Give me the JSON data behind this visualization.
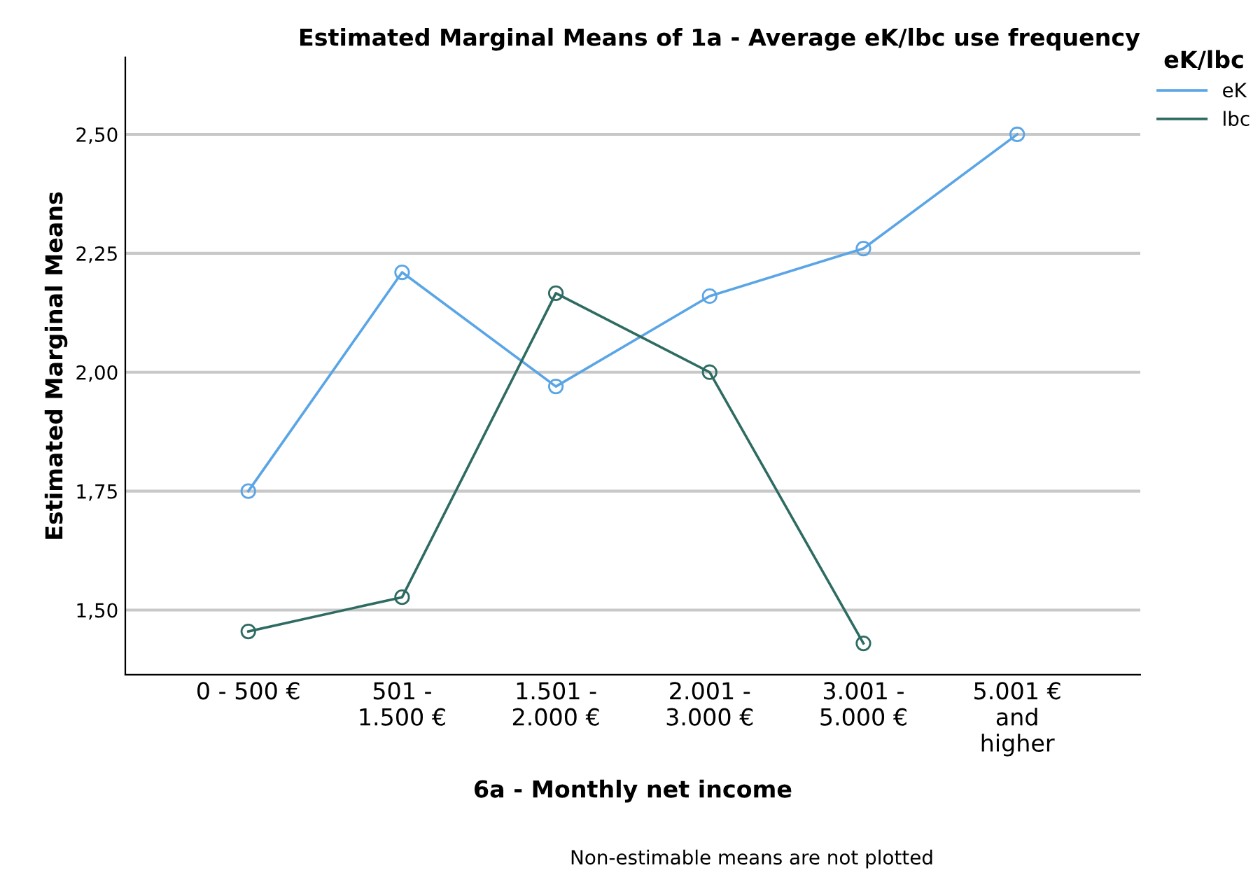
{
  "chart_data": {
    "type": "line",
    "title": "Estimated Marginal Means of 1a - Average eK/lbc use frequency",
    "xlabel": "6a - Monthly net income",
    "ylabel": "Estimated Marginal Means",
    "legend_title": "eK/lbc",
    "categories": [
      "0 - 500 €",
      "501 -\n1.500 €",
      "1.501 -\n2.000 €",
      "2.001 -\n3.000 €",
      "3.001 -\n5.000 €",
      "5.001 €\nand\nhigher"
    ],
    "series": [
      {
        "name": "eK",
        "color": "#5aa5e6",
        "values": [
          1.75,
          2.21,
          1.97,
          2.16,
          2.26,
          2.5
        ]
      },
      {
        "name": "lbc",
        "color": "#2e6b62",
        "values": [
          1.455,
          1.527,
          2.166,
          2.0,
          1.43,
          null
        ]
      }
    ],
    "ylim": [
      1.364,
      2.662
    ],
    "yticks": [
      {
        "value": 1.5,
        "label": "1,50"
      },
      {
        "value": 1.75,
        "label": "1,75"
      },
      {
        "value": 2.0,
        "label": "2,00"
      },
      {
        "value": 2.25,
        "label": "2,25"
      },
      {
        "value": 2.5,
        "label": "2,50"
      }
    ],
    "grid": "y",
    "legend": "top right",
    "marker": "circle",
    "line_style": "solid",
    "annotations": [
      "Non-estimable means are not plotted"
    ]
  }
}
